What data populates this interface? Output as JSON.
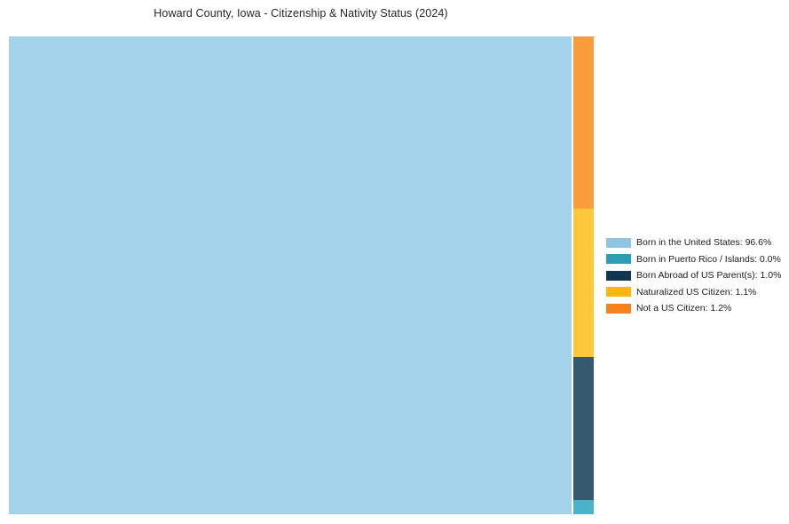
{
  "chart_data": {
    "type": "treemap",
    "title": "Howard County, Iowa - Citizenship & Nativity Status (2024)",
    "unit": "%",
    "legend_position": "right",
    "categories": [
      "Born in the United States",
      "Born in Puerto Rico / Islands",
      "Born Abroad of US Parent(s)",
      "Naturalized US Citizen",
      "Not a US Citizen"
    ],
    "values": [
      96.6,
      0.0,
      1.0,
      1.1,
      1.2
    ],
    "items": [
      {
        "name": "Born in the United States",
        "value": 96.6,
        "legend_label": "Born in the United States: 96.6%",
        "fill_color": "#A3D2E9",
        "legend_color": "#8EC6E2"
      },
      {
        "name": "Born in Puerto Rico / Islands",
        "value": 0.0,
        "legend_label": "Born in Puerto Rico / Islands: 0.0%",
        "fill_color": "#4BB3C7",
        "legend_color": "#2B9EB3"
      },
      {
        "name": "Born Abroad of US Parent(s)",
        "value": 1.0,
        "legend_label": "Born Abroad of US Parent(s): 1.0%",
        "fill_color": "#36596E",
        "legend_color": "#12364F"
      },
      {
        "name": "Naturalized US Citizen",
        "value": 1.1,
        "legend_label": "Naturalized US Citizen: 1.1%",
        "fill_color": "#FDC73C",
        "legend_color": "#FDB515"
      },
      {
        "name": "Not a US Citizen",
        "value": 1.2,
        "legend_label": "Not a US Citizen: 1.2%",
        "fill_color": "#FA9E3C",
        "legend_color": "#F5821F"
      }
    ],
    "layout": {
      "background": "#FFFFFF",
      "grid": false,
      "axes_visible": false
    }
  }
}
